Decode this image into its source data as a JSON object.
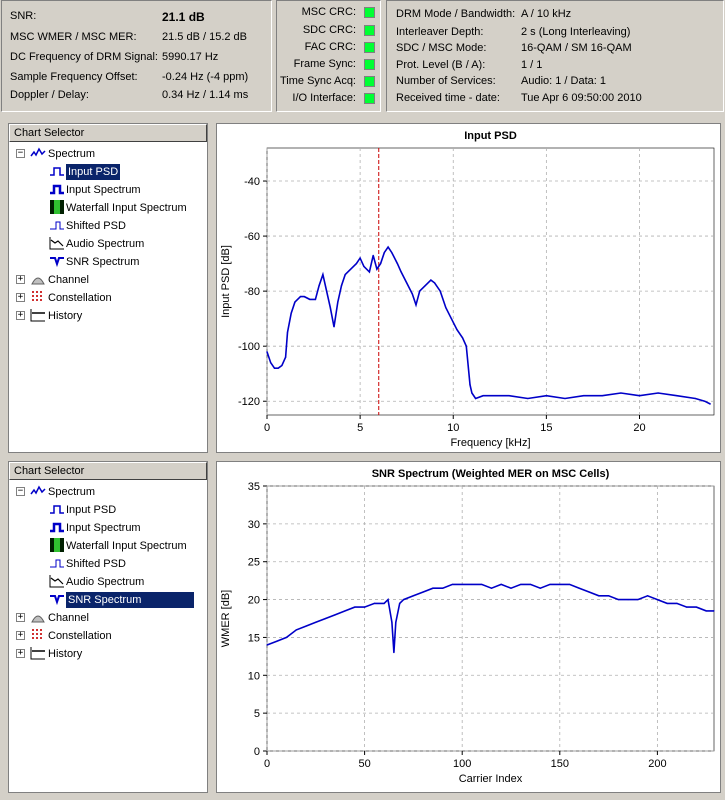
{
  "status": {
    "snr": {
      "label": "SNR:",
      "value": "21.1 dB"
    },
    "wmer": {
      "label": "MSC WMER / MSC MER:",
      "value": "21.5 dB / 15.2 dB"
    },
    "dcfreq": {
      "label": "DC Frequency of DRM Signal:",
      "value": "5990.17 Hz"
    },
    "sfo": {
      "label": "Sample Frequency Offset:",
      "value": "-0.24 Hz (-4 ppm)"
    },
    "doppler": {
      "label": "Doppler / Delay:",
      "value": "0.34 Hz / 1.14 ms"
    }
  },
  "indicators": [
    {
      "label": "MSC CRC:",
      "color": "#00ff33"
    },
    {
      "label": "SDC CRC:",
      "color": "#00ff33"
    },
    {
      "label": "FAC CRC:",
      "color": "#00ff33"
    },
    {
      "label": "Frame Sync:",
      "color": "#00ff33"
    },
    {
      "label": "Time Sync Acq:",
      "color": "#00ff33"
    },
    {
      "label": "I/O Interface:",
      "color": "#00ff33"
    }
  ],
  "drm": [
    {
      "label": "DRM Mode / Bandwidth:",
      "value": "A / 10 kHz"
    },
    {
      "label": "Interleaver Depth:",
      "value": "2 s (Long Interleaving)"
    },
    {
      "label": "SDC / MSC Mode:",
      "value": "16-QAM / SM 16-QAM"
    },
    {
      "label": "Prot. Level (B / A):",
      "value": "1 / 1"
    },
    {
      "label": "Number of Services:",
      "value": "Audio: 1 / Data: 1"
    },
    {
      "label": "Received time - date:",
      "value": "Tue Apr 6 09:50:00 2010"
    }
  ],
  "chart_selector_top": {
    "header": "Chart Selector",
    "spectrum": "Spectrum",
    "children": [
      "Input PSD",
      "Input Spectrum",
      "Waterfall Input Spectrum",
      "Shifted PSD",
      "Audio Spectrum",
      "SNR Spectrum"
    ],
    "selected": 0,
    "others": [
      "Channel",
      "Constellation",
      "History"
    ]
  },
  "chart_selector_bottom": {
    "header": "Chart Selector",
    "spectrum": "Spectrum",
    "children": [
      "Input PSD",
      "Input Spectrum",
      "Waterfall Input Spectrum",
      "Shifted PSD",
      "Audio Spectrum",
      "SNR Spectrum"
    ],
    "selected": 5,
    "others": [
      "Channel",
      "Constellation",
      "History"
    ]
  },
  "chart_data": [
    {
      "type": "line",
      "title": "Input PSD",
      "xlabel": "Frequency [kHz]",
      "ylabel": "Input PSD [dB]",
      "xlim": [
        0,
        24
      ],
      "ylim": [
        -125,
        -28
      ],
      "xticks": [
        0,
        5,
        10,
        15,
        20
      ],
      "yticks": [
        -120,
        -100,
        -80,
        -60,
        -40
      ],
      "grid": true,
      "marker_x": 6.0,
      "series_color": "#0000c8",
      "marker_color": "#cc0000",
      "x": [
        0,
        0.2,
        0.4,
        0.6,
        0.8,
        1.0,
        1.1,
        1.3,
        1.5,
        1.8,
        2.0,
        2.3,
        2.6,
        2.8,
        3.0,
        3.2,
        3.4,
        3.6,
        3.8,
        4.0,
        4.2,
        4.5,
        4.8,
        5.0,
        5.2,
        5.5,
        5.7,
        5.9,
        6.1,
        6.3,
        6.5,
        6.7,
        7.0,
        7.2,
        7.5,
        7.8,
        8.0,
        8.2,
        8.5,
        8.8,
        9.0,
        9.3,
        9.6,
        9.9,
        10.2,
        10.5,
        10.7,
        10.9,
        11.0,
        11.2,
        11.6,
        12,
        13,
        14,
        15,
        16,
        17,
        18,
        19,
        20,
        21,
        22,
        23,
        23.5,
        23.8
      ],
      "y": [
        -102,
        -106,
        -108,
        -108,
        -107,
        -104,
        -95,
        -88,
        -84,
        -82,
        -82,
        -83,
        -83,
        -78,
        -74,
        -80,
        -86,
        -93,
        -84,
        -78,
        -74,
        -72,
        -70,
        -68,
        -71,
        -73,
        -67,
        -72,
        -70,
        -66,
        -64,
        -66,
        -70,
        -73,
        -77,
        -81,
        -85,
        -80,
        -78,
        -76,
        -77,
        -80,
        -86,
        -90,
        -94,
        -97,
        -100,
        -114,
        -117,
        -119,
        -118,
        -118,
        -118,
        -119,
        -118,
        -119,
        -118,
        -118,
        -117,
        -118,
        -117,
        -118,
        -119,
        -120,
        -121
      ]
    },
    {
      "type": "line",
      "title": "SNR Spectrum (Weighted MER on MSC Cells)",
      "xlabel": "Carrier Index",
      "ylabel": "WMER [dB]",
      "xlim": [
        0,
        229
      ],
      "ylim": [
        0,
        35
      ],
      "xticks": [
        0,
        50,
        100,
        150,
        200
      ],
      "yticks": [
        0,
        5,
        10,
        15,
        20,
        25,
        30,
        35
      ],
      "grid": true,
      "series_color": "#0000c8",
      "x": [
        0,
        5,
        10,
        15,
        20,
        25,
        30,
        35,
        40,
        45,
        50,
        55,
        60,
        62,
        64,
        65,
        66,
        68,
        70,
        75,
        80,
        85,
        90,
        95,
        100,
        105,
        110,
        115,
        120,
        125,
        130,
        135,
        140,
        145,
        150,
        155,
        160,
        165,
        170,
        175,
        180,
        185,
        190,
        195,
        200,
        205,
        210,
        215,
        220,
        225,
        229
      ],
      "y": [
        14,
        14.5,
        15,
        16,
        16.5,
        17,
        17.5,
        18,
        18.5,
        19,
        19,
        19.5,
        19.5,
        20,
        17,
        13,
        17,
        19.5,
        20,
        20.5,
        21,
        21.5,
        21.5,
        22,
        22,
        22,
        22,
        21.5,
        22,
        21.5,
        22,
        22,
        21.5,
        22,
        22,
        22,
        21.5,
        21,
        20.5,
        20.5,
        20,
        20,
        20,
        20.5,
        20,
        19.5,
        19.5,
        19,
        19,
        18.5,
        18.5
      ]
    }
  ]
}
